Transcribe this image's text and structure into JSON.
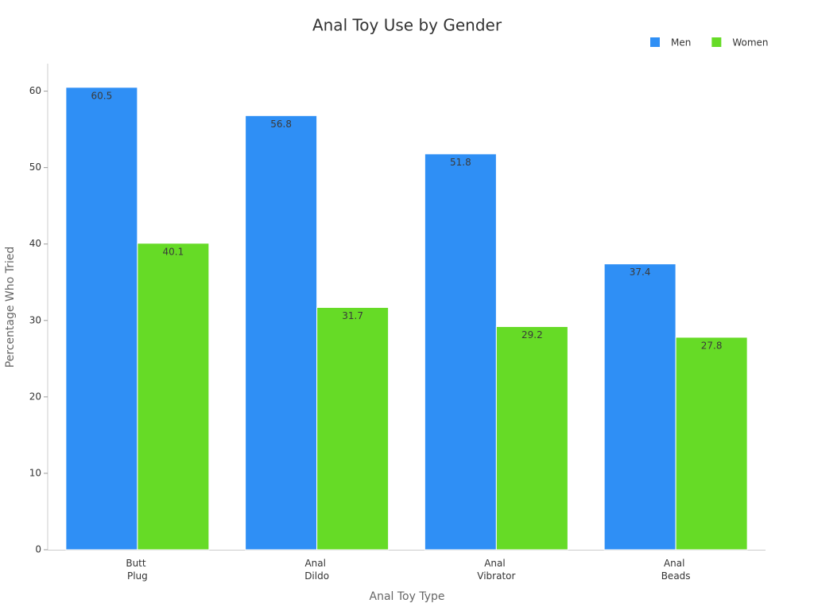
{
  "chart_data": {
    "type": "bar",
    "title": "Anal Toy Use by Gender",
    "x_label": "Anal Toy Type",
    "y_label": "Percentage Who Tried",
    "categories": [
      "Butt Plug",
      "Anal Dildo",
      "Anal Vibrator",
      "Anal Beads"
    ],
    "series": [
      {
        "name": "Men",
        "color": "#2f8ff5",
        "values": [
          60.5,
          56.8,
          51.8,
          37.4
        ]
      },
      {
        "name": "Women",
        "color": "#66db26",
        "values": [
          40.1,
          31.7,
          29.2,
          27.8
        ]
      }
    ],
    "ylim": [
      0,
      63.6
    ],
    "yticks": [
      0,
      10,
      20,
      30,
      40,
      50,
      60
    ],
    "legend": "top-right",
    "grid": false
  }
}
